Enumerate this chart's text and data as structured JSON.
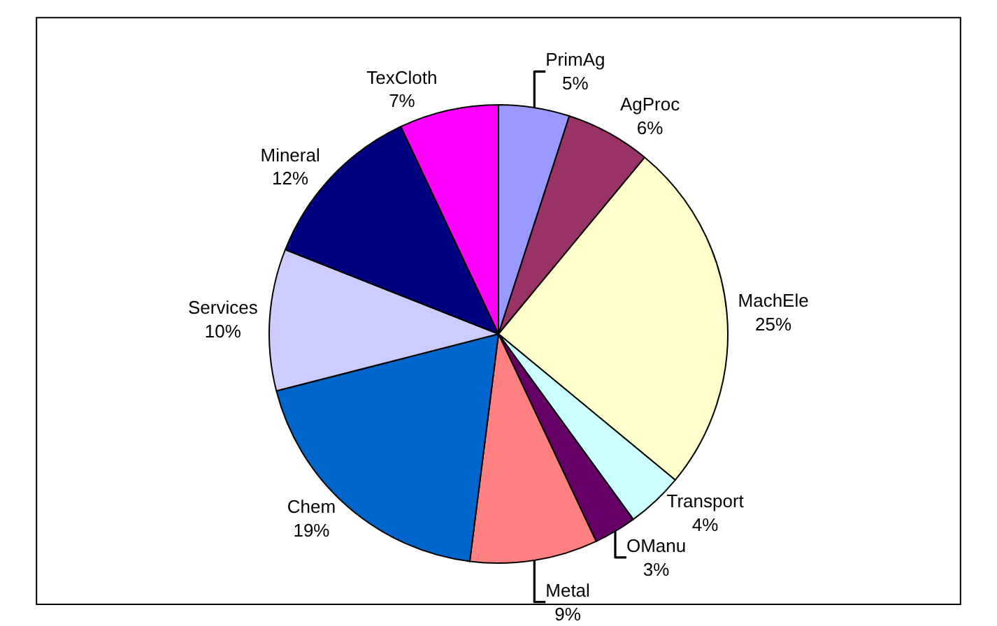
{
  "chart_data": {
    "type": "pie",
    "categories": [
      "PrimAg",
      "AgProc",
      "MachEle",
      "Transport",
      "OManu",
      "Metal",
      "Chem",
      "Services",
      "Mineral",
      "TexCloth"
    ],
    "values": [
      5,
      6,
      25,
      4,
      3,
      9,
      19,
      10,
      12,
      7
    ],
    "value_labels": [
      "5%",
      "6%",
      "25%",
      "4%",
      "3%",
      "9%",
      "19%",
      "10%",
      "12%",
      "7%"
    ],
    "colors": [
      "#9999ff",
      "#993366",
      "#ffffcc",
      "#ccffff",
      "#660066",
      "#ff8080",
      "#0066cc",
      "#ccccff",
      "#000080",
      "#ff00ff"
    ],
    "legend": false
  }
}
